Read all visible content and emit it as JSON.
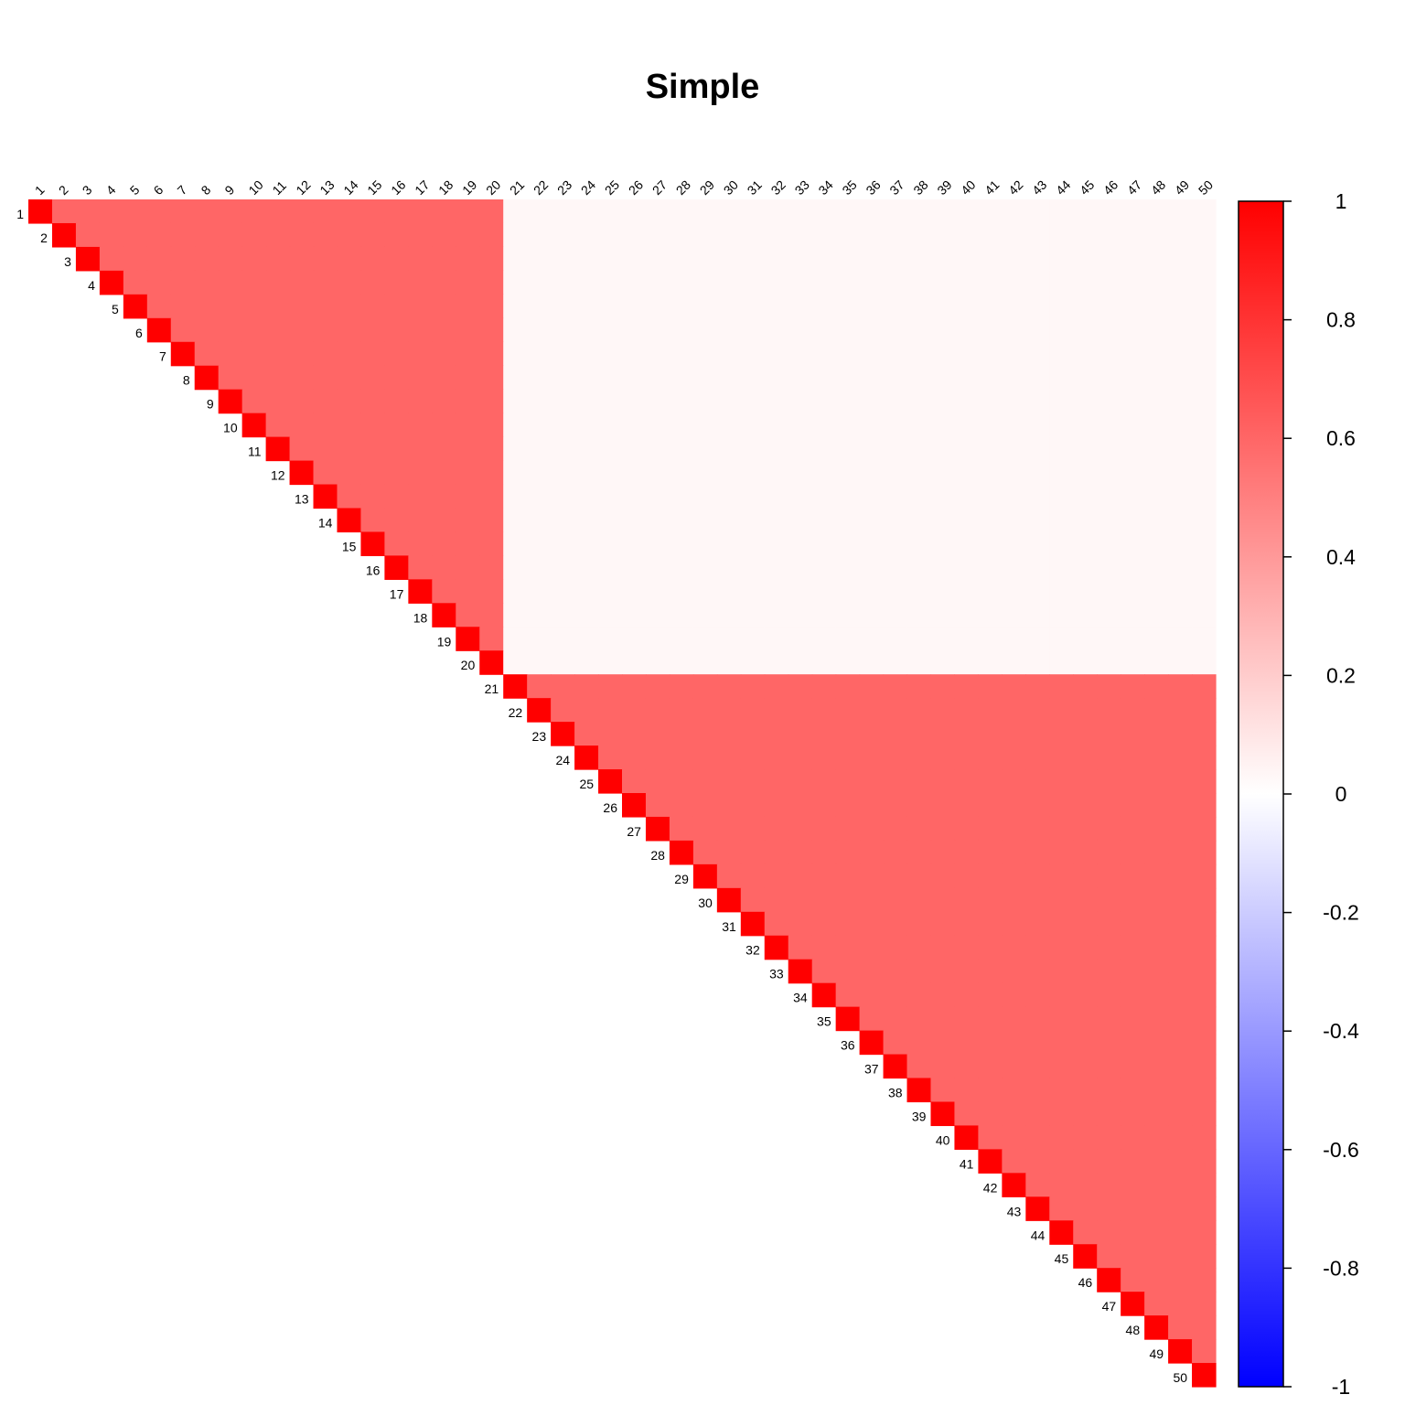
{
  "chart_data": {
    "type": "heatmap",
    "title": "Simple",
    "layout": "upper-triangle",
    "n": 50,
    "labels": [
      "1",
      "2",
      "3",
      "4",
      "5",
      "6",
      "7",
      "8",
      "9",
      "10",
      "11",
      "12",
      "13",
      "14",
      "15",
      "16",
      "17",
      "18",
      "19",
      "20",
      "21",
      "22",
      "23",
      "24",
      "25",
      "26",
      "27",
      "28",
      "29",
      "30",
      "31",
      "32",
      "33",
      "34",
      "35",
      "36",
      "37",
      "38",
      "39",
      "40",
      "41",
      "42",
      "43",
      "44",
      "45",
      "46",
      "47",
      "48",
      "49",
      "50"
    ],
    "blocks": [
      {
        "rows": [
          1,
          20
        ],
        "cols": [
          1,
          20
        ],
        "value": 0.6
      },
      {
        "rows": [
          21,
          50
        ],
        "cols": [
          21,
          50
        ],
        "value": 0.6
      },
      {
        "rows": [
          1,
          20
        ],
        "cols": [
          21,
          50
        ],
        "value": 0.03
      }
    ],
    "diagonal_value": 1,
    "colorbar": {
      "range": [
        -1,
        1
      ],
      "ticks": [
        "1",
        "0.8",
        "0.6",
        "0.4",
        "0.2",
        "0",
        "-0.2",
        "-0.4",
        "-0.6",
        "-0.8",
        "-1"
      ],
      "low_color": "#0000ff",
      "mid_color": "#ffffff",
      "high_color": "#ff0000"
    }
  }
}
